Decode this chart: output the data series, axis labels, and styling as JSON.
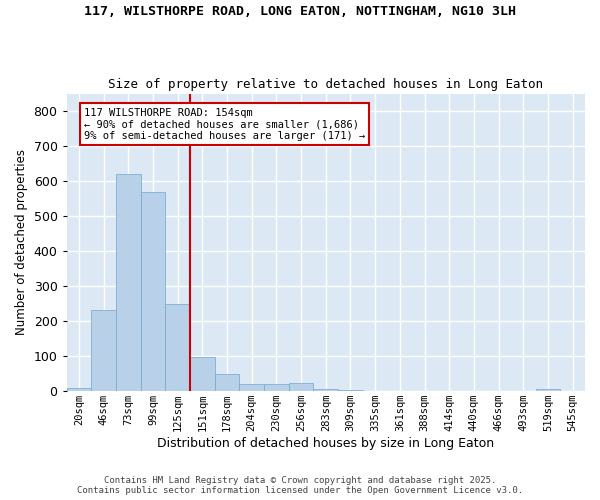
{
  "title1": "117, WILSTHORPE ROAD, LONG EATON, NOTTINGHAM, NG10 3LH",
  "title2": "Size of property relative to detached houses in Long Eaton",
  "xlabel": "Distribution of detached houses by size in Long Eaton",
  "ylabel": "Number of detached properties",
  "categories": [
    "20sqm",
    "46sqm",
    "73sqm",
    "99sqm",
    "125sqm",
    "151sqm",
    "178sqm",
    "204sqm",
    "230sqm",
    "256sqm",
    "283sqm",
    "309sqm",
    "335sqm",
    "361sqm",
    "388sqm",
    "414sqm",
    "440sqm",
    "466sqm",
    "493sqm",
    "519sqm",
    "545sqm"
  ],
  "values": [
    10,
    232,
    621,
    570,
    250,
    97,
    50,
    21,
    21,
    22,
    7,
    2,
    0,
    0,
    0,
    0,
    0,
    0,
    0,
    5,
    0
  ],
  "bar_color": "#b8d0e8",
  "bar_edge_color": "#6fa8d0",
  "background_color": "#dce9f5",
  "grid_color": "#ffffff",
  "vline_color": "#cc0000",
  "annotation_text": "117 WILSTHORPE ROAD: 154sqm\n← 90% of detached houses are smaller (1,686)\n9% of semi-detached houses are larger (171) →",
  "annotation_box_color": "#cc0000",
  "ylim": [
    0,
    850
  ],
  "yticks": [
    0,
    100,
    200,
    300,
    400,
    500,
    600,
    700,
    800
  ],
  "footer1": "Contains HM Land Registry data © Crown copyright and database right 2025.",
  "footer2": "Contains public sector information licensed under the Open Government Licence v3.0."
}
